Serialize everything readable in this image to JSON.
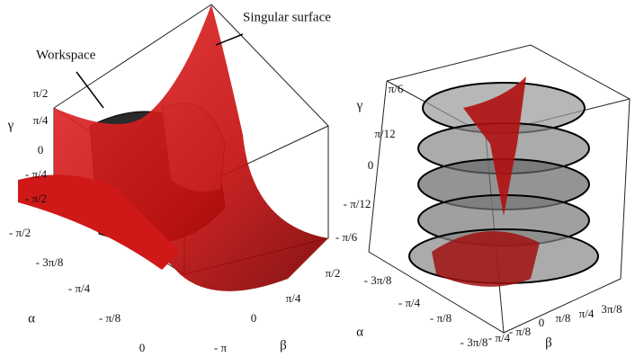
{
  "left": {
    "annotations": [
      "Workspace",
      "Singular surface"
    ],
    "gamma_label": "γ",
    "alpha_label": "α",
    "beta_label": "β",
    "gamma_ticks": [
      "π/2",
      "π/4",
      "0",
      "- π/4",
      "- π/2"
    ],
    "alpha_ticks": [
      "- π/2",
      "- 3π/8",
      "- π/4",
      "- π/8",
      "0"
    ],
    "beta_ticks": [
      "- π",
      "0",
      "π/4",
      "π/2"
    ]
  },
  "right": {
    "gamma_label": "γ",
    "alpha_label": "α",
    "beta_label": "β",
    "gamma_ticks": [
      "π/6",
      "π/12",
      "0",
      "- π/12",
      "- π/6"
    ],
    "alpha_ticks": [
      "- 3π/8",
      "- π/4",
      "- π/8",
      "- 3π/8"
    ],
    "beta_ticks": [
      "- π/4",
      "- π/8",
      "0",
      "π/8",
      "π/4",
      "3π/8"
    ]
  }
}
